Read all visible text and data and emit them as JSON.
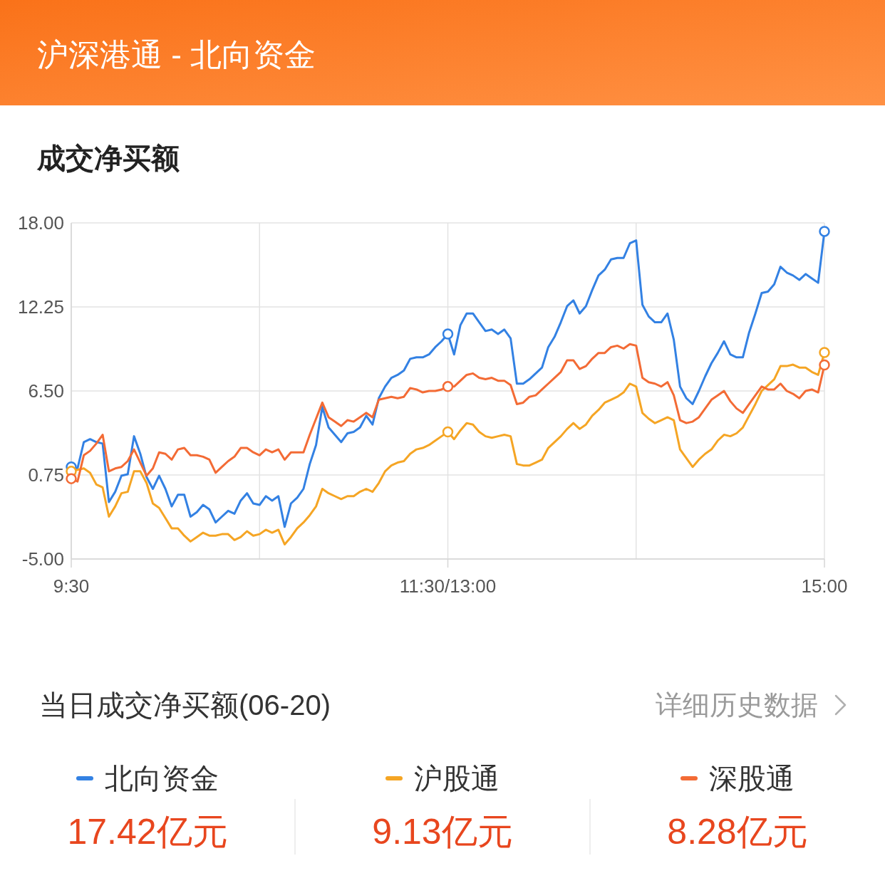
{
  "chart_data": {
    "type": "line",
    "title": "沪深港通 - 北向资金",
    "subtitle": "成交净买额",
    "annotations": [
      "当日成交净买额(06-20)",
      "详细历史数据",
      "17.42亿元",
      "9.13亿元",
      "8.28亿元"
    ],
    "categories": [
      "9:30",
      null,
      null,
      null,
      null,
      null,
      null,
      null,
      null,
      null,
      null,
      null,
      null,
      null,
      null,
      null,
      null,
      null,
      null,
      null,
      null,
      null,
      null,
      null,
      null,
      null,
      null,
      null,
      null,
      null,
      null,
      null,
      null,
      null,
      null,
      null,
      null,
      null,
      null,
      null,
      null,
      null,
      null,
      null,
      null,
      null,
      null,
      null,
      null,
      null,
      null,
      null,
      null,
      null,
      null,
      null,
      null,
      null,
      null,
      null,
      "11:30/13:00",
      null,
      null,
      null,
      null,
      null,
      null,
      null,
      null,
      null,
      null,
      null,
      null,
      null,
      null,
      null,
      null,
      null,
      null,
      null,
      null,
      null,
      null,
      null,
      null,
      null,
      null,
      null,
      null,
      null,
      null,
      null,
      null,
      null,
      null,
      null,
      null,
      null,
      null,
      null,
      null,
      null,
      null,
      null,
      null,
      null,
      null,
      null,
      null,
      null,
      null,
      null,
      null,
      null,
      null,
      null,
      null,
      null,
      null,
      null,
      "15:00"
    ],
    "ylim": [
      -5,
      18
    ],
    "yticks": [
      {
        "value": 18,
        "label": "18.00"
      },
      {
        "value": 12.25,
        "label": "12.25"
      },
      {
        "value": 6.5,
        "label": "6.50"
      },
      {
        "value": 0.75,
        "label": "0.75"
      },
      {
        "value": -5,
        "label": "-5.00"
      }
    ],
    "grid": true,
    "legend": "bottom",
    "series": [
      {
        "name": "北向资金",
        "color": "#3381e3",
        "values": [
          1.3,
          1.2,
          3.0,
          3.2,
          3.0,
          2.9,
          -1.1,
          -0.4,
          0.7,
          0.8,
          3.4,
          2.2,
          0.6,
          -0.2,
          0.7,
          -0.2,
          -1.4,
          -0.6,
          -0.6,
          -2.1,
          -1.8,
          -1.3,
          -1.6,
          -2.5,
          -2.1,
          -1.7,
          -1.9,
          -1.0,
          -0.5,
          -1.2,
          -1.3,
          -0.7,
          -1.0,
          -0.7,
          -2.8,
          -1.2,
          -0.8,
          -0.2,
          1.5,
          2.8,
          5.4,
          4.0,
          3.5,
          3.0,
          3.6,
          3.7,
          4.0,
          4.8,
          4.2,
          6.0,
          6.8,
          7.4,
          7.6,
          7.9,
          8.7,
          8.8,
          8.8,
          9.0,
          9.5,
          9.9,
          10.4,
          9.0,
          11.0,
          11.8,
          11.8,
          11.2,
          10.6,
          10.7,
          10.4,
          10.7,
          10.1,
          7.0,
          7.0,
          7.3,
          7.7,
          8.1,
          9.5,
          10.2,
          11.2,
          12.3,
          12.7,
          11.8,
          12.3,
          13.4,
          14.4,
          14.8,
          15.5,
          15.6,
          15.6,
          16.6,
          16.8,
          12.4,
          11.6,
          11.2,
          11.2,
          11.8,
          10.0,
          6.8,
          6.0,
          5.6,
          6.5,
          7.5,
          8.4,
          9.1,
          9.9,
          9.0,
          8.8,
          8.8,
          10.5,
          11.8,
          13.2,
          13.3,
          13.8,
          15.0,
          14.6,
          14.4,
          14.1,
          14.5,
          14.2,
          13.9,
          17.42
        ]
      },
      {
        "name": "沪股通",
        "color": "#f5a524",
        "values": [
          1.0,
          1.1,
          1.2,
          0.9,
          0.1,
          -0.1,
          -2.1,
          -1.4,
          -0.5,
          -0.4,
          1.0,
          1.0,
          0.2,
          -1.2,
          -1.5,
          -2.2,
          -2.9,
          -2.9,
          -3.4,
          -3.8,
          -3.5,
          -3.2,
          -3.4,
          -3.4,
          -3.3,
          -3.3,
          -3.7,
          -3.5,
          -3.1,
          -3.4,
          -3.3,
          -3.0,
          -3.2,
          -3.0,
          -4.0,
          -3.5,
          -2.9,
          -2.5,
          -2.0,
          -1.4,
          -0.2,
          -0.5,
          -0.7,
          -0.9,
          -0.7,
          -0.7,
          -0.4,
          -0.2,
          -0.4,
          0.2,
          1.0,
          1.4,
          1.6,
          1.7,
          2.2,
          2.5,
          2.6,
          2.8,
          3.1,
          3.4,
          3.7,
          3.2,
          3.8,
          4.3,
          4.2,
          3.7,
          3.4,
          3.3,
          3.4,
          3.5,
          3.4,
          1.5,
          1.4,
          1.4,
          1.6,
          1.8,
          2.6,
          3.0,
          3.4,
          3.9,
          4.3,
          3.9,
          4.2,
          4.8,
          5.2,
          5.7,
          5.9,
          6.1,
          6.4,
          7.0,
          6.8,
          5.0,
          4.6,
          4.3,
          4.5,
          4.7,
          4.5,
          2.5,
          1.9,
          1.3,
          1.8,
          2.2,
          2.5,
          3.1,
          3.5,
          3.4,
          3.6,
          4.0,
          4.8,
          5.6,
          6.5,
          6.9,
          7.3,
          8.2,
          8.2,
          8.3,
          8.1,
          8.1,
          7.8,
          7.6,
          9.13
        ]
      },
      {
        "name": "深股通",
        "color": "#f36b35",
        "values": [
          0.5,
          0.3,
          2.1,
          2.4,
          2.9,
          3.5,
          1.0,
          1.2,
          1.3,
          1.7,
          2.5,
          1.6,
          0.7,
          1.2,
          2.3,
          2.2,
          1.8,
          2.5,
          2.6,
          2.1,
          2.1,
          2.0,
          1.8,
          0.9,
          1.3,
          1.7,
          2.0,
          2.6,
          2.6,
          2.3,
          2.1,
          2.5,
          2.3,
          2.5,
          1.8,
          2.3,
          2.3,
          2.3,
          3.5,
          4.6,
          5.7,
          4.7,
          4.4,
          4.1,
          4.5,
          4.4,
          4.7,
          5.0,
          4.7,
          5.9,
          6.0,
          6.1,
          6.0,
          6.1,
          6.7,
          6.6,
          6.4,
          6.5,
          6.5,
          6.6,
          6.8,
          6.8,
          7.2,
          7.6,
          7.7,
          7.4,
          7.3,
          7.4,
          7.2,
          7.2,
          6.9,
          5.6,
          5.7,
          6.1,
          6.2,
          6.6,
          7.0,
          7.4,
          7.8,
          8.6,
          8.6,
          8.0,
          8.2,
          8.7,
          9.1,
          9.1,
          9.5,
          9.6,
          9.4,
          9.7,
          9.6,
          7.4,
          7.1,
          7.0,
          6.8,
          7.1,
          6.2,
          4.5,
          4.3,
          4.4,
          4.7,
          5.3,
          5.9,
          6.2,
          6.5,
          5.8,
          5.3,
          5.0,
          5.6,
          6.2,
          6.8,
          6.6,
          6.6,
          7.0,
          6.5,
          6.3,
          6.0,
          6.5,
          6.6,
          6.4,
          8.28
        ]
      },
      {
        "type": "scatter",
        "marker": "circle",
        "color": "#3381e3",
        "values": [
          1.3,
          null,
          null,
          null,
          null,
          null,
          null,
          null,
          null,
          null,
          null,
          null,
          null,
          null,
          null,
          null,
          null,
          null,
          null,
          null,
          null,
          null,
          null,
          null,
          null,
          null,
          null,
          null,
          null,
          null,
          null,
          null,
          null,
          null,
          null,
          null,
          null,
          null,
          null,
          null,
          null,
          null,
          null,
          null,
          null,
          null,
          null,
          null,
          null,
          null,
          null,
          null,
          null,
          null,
          null,
          null,
          null,
          null,
          null,
          null,
          10.4,
          null,
          null,
          null,
          null,
          null,
          null,
          null,
          null,
          null,
          null,
          null,
          null,
          null,
          null,
          null,
          null,
          null,
          null,
          null,
          null,
          null,
          null,
          null,
          null,
          null,
          null,
          null,
          null,
          null,
          null,
          null,
          null,
          null,
          null,
          null,
          null,
          null,
          null,
          null,
          null,
          null,
          null,
          null,
          null,
          null,
          null,
          null,
          null,
          null,
          null,
          null,
          null,
          null,
          null,
          null,
          null,
          null,
          null,
          null,
          17.42
        ]
      },
      {
        "type": "scatter",
        "marker": "circle",
        "color": "#f5a524",
        "values": [
          1.0,
          null,
          null,
          null,
          null,
          null,
          null,
          null,
          null,
          null,
          null,
          null,
          null,
          null,
          null,
          null,
          null,
          null,
          null,
          null,
          null,
          null,
          null,
          null,
          null,
          null,
          null,
          null,
          null,
          null,
          null,
          null,
          null,
          null,
          null,
          null,
          null,
          null,
          null,
          null,
          null,
          null,
          null,
          null,
          null,
          null,
          null,
          null,
          null,
          null,
          null,
          null,
          null,
          null,
          null,
          null,
          null,
          null,
          null,
          null,
          3.7,
          null,
          null,
          null,
          null,
          null,
          null,
          null,
          null,
          null,
          null,
          null,
          null,
          null,
          null,
          null,
          null,
          null,
          null,
          null,
          null,
          null,
          null,
          null,
          null,
          null,
          null,
          null,
          null,
          null,
          null,
          null,
          null,
          null,
          null,
          null,
          null,
          null,
          null,
          null,
          null,
          null,
          null,
          null,
          null,
          null,
          null,
          null,
          null,
          null,
          null,
          null,
          null,
          null,
          null,
          null,
          null,
          null,
          null,
          null,
          9.13
        ]
      },
      {
        "type": "scatter",
        "marker": "circle",
        "color": "#f36b35",
        "values": [
          0.5,
          null,
          null,
          null,
          null,
          null,
          null,
          null,
          null,
          null,
          null,
          null,
          null,
          null,
          null,
          null,
          null,
          null,
          null,
          null,
          null,
          null,
          null,
          null,
          null,
          null,
          null,
          null,
          null,
          null,
          null,
          null,
          null,
          null,
          null,
          null,
          null,
          null,
          null,
          null,
          null,
          null,
          null,
          null,
          null,
          null,
          null,
          null,
          null,
          null,
          null,
          null,
          null,
          null,
          null,
          null,
          null,
          null,
          null,
          null,
          6.8,
          null,
          null,
          null,
          null,
          null,
          null,
          null,
          null,
          null,
          null,
          null,
          null,
          null,
          null,
          null,
          null,
          null,
          null,
          null,
          null,
          null,
          null,
          null,
          null,
          null,
          null,
          null,
          null,
          null,
          null,
          null,
          null,
          null,
          null,
          null,
          null,
          null,
          null,
          null,
          null,
          null,
          null,
          null,
          null,
          null,
          null,
          null,
          null,
          null,
          null,
          null,
          null,
          null,
          null,
          null,
          null,
          null,
          null,
          null,
          8.28
        ]
      }
    ]
  }
}
